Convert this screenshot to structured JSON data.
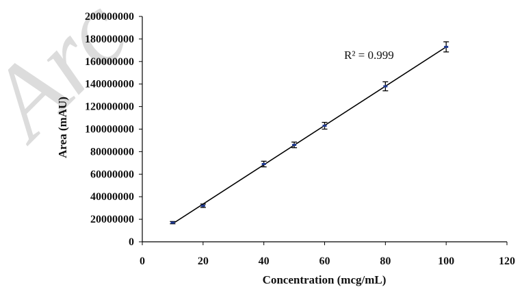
{
  "watermark": "Arc",
  "chart_data": {
    "type": "scatter",
    "xlabel": "Concentration  (mcg/mL)",
    "ylabel": "Area (mAU)",
    "xlim": [
      0,
      120
    ],
    "ylim": [
      0,
      200000000
    ],
    "x_ticks": [
      "0",
      "20",
      "40",
      "60",
      "80",
      "100",
      "120"
    ],
    "y_ticks": [
      "0",
      "20000000",
      "40000000",
      "60000000",
      "80000000",
      "100000000",
      "120000000",
      "140000000",
      "160000000",
      "180000000",
      "200000000"
    ],
    "grid": false,
    "legend": "none",
    "annotation": "R² = 0.999",
    "series": [
      {
        "points": [
          {
            "x": 10,
            "y": 17000000,
            "err": 1000000
          },
          {
            "x": 20,
            "y": 32000000,
            "err": 1500000
          },
          {
            "x": 40,
            "y": 69000000,
            "err": 2500000
          },
          {
            "x": 50,
            "y": 86000000,
            "err": 2500000
          },
          {
            "x": 60,
            "y": 103000000,
            "err": 3000000
          },
          {
            "x": 80,
            "y": 138000000,
            "err": 4000000
          },
          {
            "x": 100,
            "y": 173000000,
            "err": 4500000
          }
        ],
        "trendline": {
          "type": "linear",
          "x": [
            10,
            100
          ]
        }
      }
    ],
    "colors": {
      "axis": "#000000",
      "marker": "#1f3a93",
      "errorbar": "#000000",
      "trendline": "#000000"
    }
  }
}
